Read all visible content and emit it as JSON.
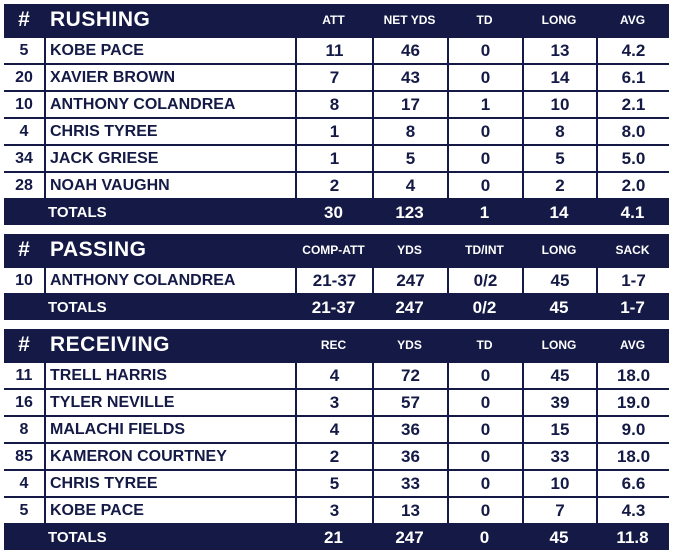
{
  "rushing": {
    "hash": "#",
    "title": "RUSHING",
    "columns": [
      "ATT",
      "NET YDS",
      "TD",
      "LONG",
      "AVG"
    ],
    "rows": [
      {
        "num": "5",
        "name": "KOBE PACE",
        "vals": [
          "11",
          "46",
          "0",
          "13",
          "4.2"
        ]
      },
      {
        "num": "20",
        "name": "XAVIER BROWN",
        "vals": [
          "7",
          "43",
          "0",
          "14",
          "6.1"
        ]
      },
      {
        "num": "10",
        "name": "ANTHONY COLANDREA",
        "vals": [
          "8",
          "17",
          "1",
          "10",
          "2.1"
        ]
      },
      {
        "num": "4",
        "name": "CHRIS TYREE",
        "vals": [
          "1",
          "8",
          "0",
          "8",
          "8.0"
        ]
      },
      {
        "num": "34",
        "name": "JACK GRIESE",
        "vals": [
          "1",
          "5",
          "0",
          "5",
          "5.0"
        ]
      },
      {
        "num": "28",
        "name": "NOAH VAUGHN",
        "vals": [
          "2",
          "4",
          "0",
          "2",
          "2.0"
        ]
      }
    ],
    "totals": {
      "label": "TOTALS",
      "vals": [
        "30",
        "123",
        "1",
        "14",
        "4.1"
      ]
    }
  },
  "passing": {
    "hash": "#",
    "title": "PASSING",
    "columns": [
      "COMP-ATT",
      "YDS",
      "TD/INT",
      "LONG",
      "SACK"
    ],
    "rows": [
      {
        "num": "10",
        "name": "ANTHONY COLANDREA",
        "vals": [
          "21-37",
          "247",
          "0/2",
          "45",
          "1-7"
        ]
      }
    ],
    "totals": {
      "label": "TOTALS",
      "vals": [
        "21-37",
        "247",
        "0/2",
        "45",
        "1-7"
      ]
    }
  },
  "receiving": {
    "hash": "#",
    "title": "RECEIVING",
    "columns": [
      "REC",
      "YDS",
      "TD",
      "LONG",
      "AVG"
    ],
    "rows": [
      {
        "num": "11",
        "name": "TRELL HARRIS",
        "vals": [
          "4",
          "72",
          "0",
          "45",
          "18.0"
        ]
      },
      {
        "num": "16",
        "name": "TYLER NEVILLE",
        "vals": [
          "3",
          "57",
          "0",
          "39",
          "19.0"
        ]
      },
      {
        "num": "8",
        "name": "MALACHI FIELDS",
        "vals": [
          "4",
          "36",
          "0",
          "15",
          "9.0"
        ]
      },
      {
        "num": "85",
        "name": "KAMERON COURTNEY",
        "vals": [
          "2",
          "36",
          "0",
          "33",
          "18.0"
        ]
      },
      {
        "num": "4",
        "name": "CHRIS TYREE",
        "vals": [
          "5",
          "33",
          "0",
          "10",
          "6.6"
        ]
      },
      {
        "num": "5",
        "name": "KOBE PACE",
        "vals": [
          "3",
          "13",
          "0",
          "7",
          "4.3"
        ]
      }
    ],
    "totals": {
      "label": "TOTALS",
      "vals": [
        "21",
        "247",
        "0",
        "45",
        "11.8"
      ]
    }
  },
  "colors": {
    "navy": "#141a45",
    "white": "#ffffff"
  }
}
